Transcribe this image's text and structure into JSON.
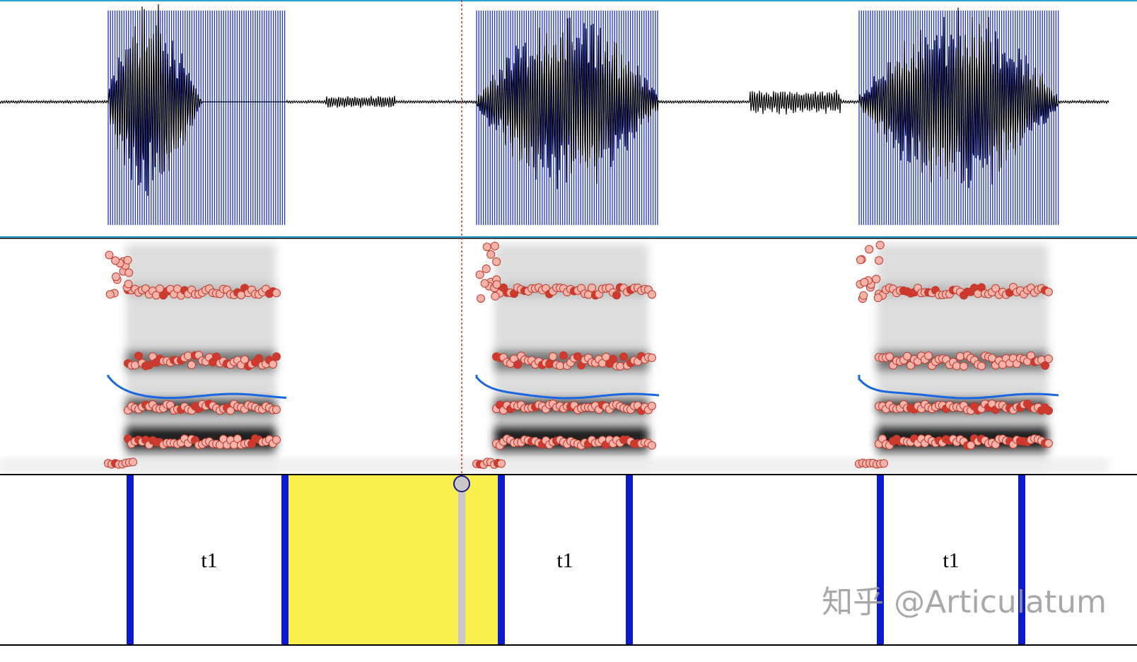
{
  "tier": {
    "labels": [
      "t1",
      "t1",
      "t1"
    ]
  },
  "watermark": "知乎 @Articulatum"
}
